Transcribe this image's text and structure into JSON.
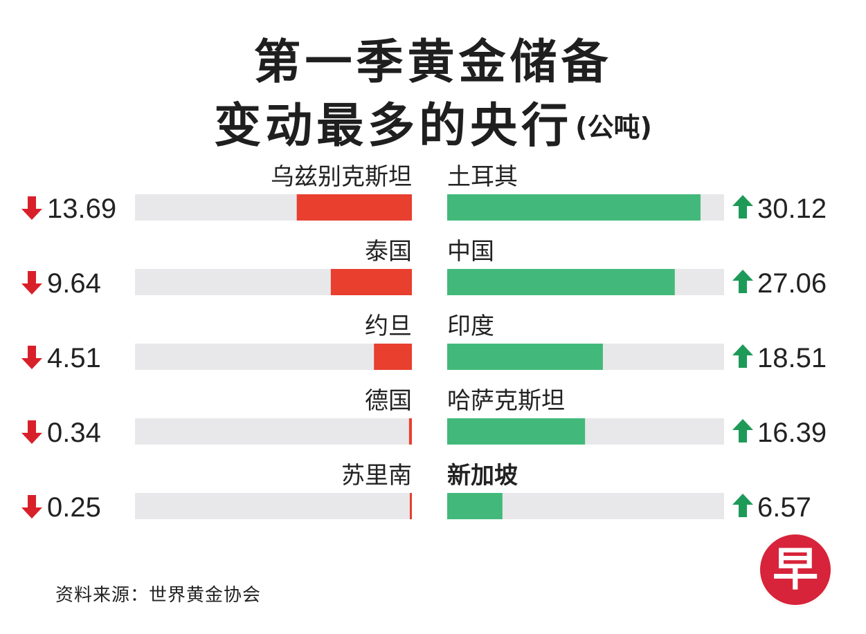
{
  "title": {
    "line1": "第一季黄金储备",
    "line2": "变动最多的央行",
    "unit": "(公吨)"
  },
  "chart_data": {
    "type": "bar",
    "title": "第一季黄金储备变动最多的央行",
    "unit": "(公吨)",
    "xlim": [
      0,
      35
    ],
    "series": [
      {
        "direction": "decrease",
        "color": "#e83f2f",
        "categories": [
          "乌兹别克斯坦",
          "泰国",
          "约旦",
          "德国",
          "苏里南"
        ],
        "values": [
          13.69,
          9.64,
          4.51,
          0.34,
          0.25
        ],
        "labels": [
          "13.69",
          "9.64",
          "4.51",
          "0.34",
          "0.25"
        ]
      },
      {
        "direction": "increase",
        "color": "#42b97a",
        "categories": [
          "土耳其",
          "中国",
          "印度",
          "哈萨克斯坦",
          "新加坡"
        ],
        "values": [
          30.12,
          27.06,
          18.51,
          16.39,
          6.57
        ],
        "labels": [
          "30.12",
          "27.06",
          "18.51",
          "16.39",
          "6.57"
        ],
        "highlight": "新加坡"
      }
    ],
    "track_color": "#e8e8ea",
    "down_arrow_color": "#d8202a",
    "up_arrow_color": "#1e9a58"
  },
  "source": "资料来源：世界黄金协会",
  "logo": {
    "glyph": "早",
    "color": "#d7243a"
  }
}
